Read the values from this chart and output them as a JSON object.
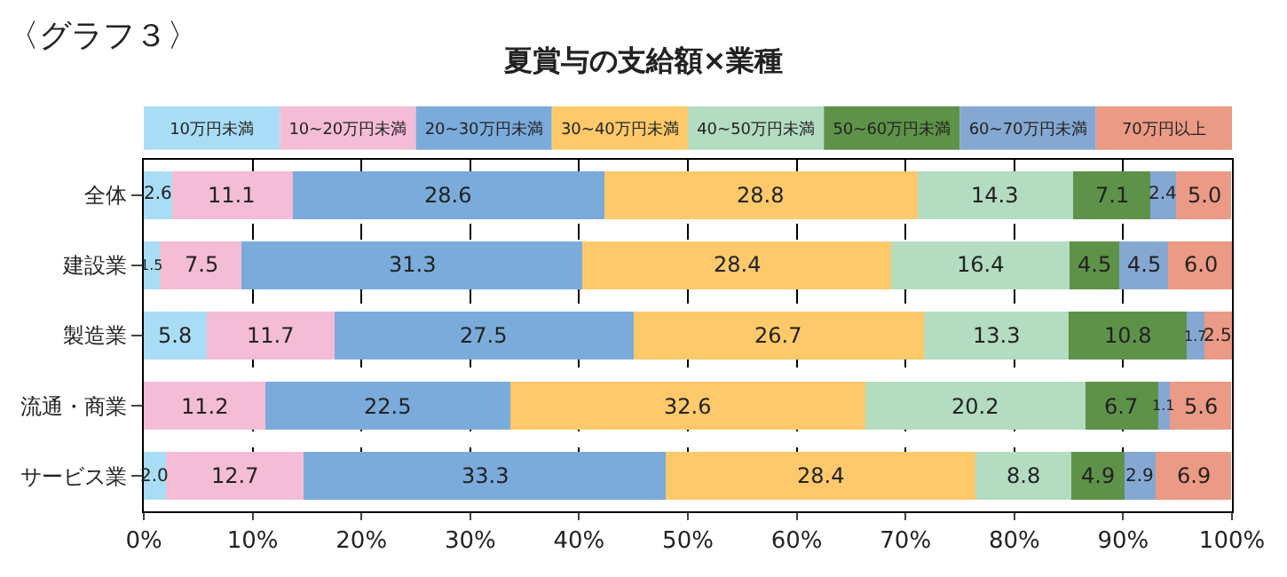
{
  "chart_data": {
    "type": "bar",
    "orientation": "horizontal",
    "stacked": true,
    "title": "夏賞与の支給額×業種",
    "annotations": [
      "〈グラフ３〉"
    ],
    "categories": [
      "全体",
      "建設業",
      "製造業",
      "流通・商業",
      "サービス業"
    ],
    "series": [
      {
        "name": "10万円未満",
        "color": "#a9ddf5",
        "values": [
          2.6,
          1.5,
          5.8,
          0,
          2.0
        ],
        "value_labels": [
          "2.6",
          "1.5",
          "5.8",
          null,
          "2.0"
        ]
      },
      {
        "name": "10~20万円未満",
        "color": "#f5bcd6",
        "values": [
          11.1,
          7.5,
          11.7,
          11.2,
          12.7
        ],
        "value_labels": [
          "11.1",
          "7.5",
          "11.7",
          "11.2",
          "12.7"
        ]
      },
      {
        "name": "20~30万円未満",
        "color": "#7aabdb",
        "values": [
          28.6,
          31.3,
          27.5,
          22.5,
          33.3
        ],
        "value_labels": [
          "28.6",
          "31.3",
          "27.5",
          "22.5",
          "33.3"
        ]
      },
      {
        "name": "30~40万円未満",
        "color": "#fdc96a",
        "values": [
          28.8,
          28.4,
          26.7,
          32.6,
          28.4
        ],
        "value_labels": [
          "28.8",
          "28.4",
          "26.7",
          "32.6",
          "28.4"
        ]
      },
      {
        "name": "40~50万円未満",
        "color": "#b3dcc0",
        "values": [
          14.3,
          16.4,
          13.3,
          20.2,
          8.8
        ],
        "value_labels": [
          "14.3",
          "16.4",
          "13.3",
          "20.2",
          "8.8"
        ]
      },
      {
        "name": "50~60万円未満",
        "color": "#5e9248",
        "values": [
          7.1,
          4.5,
          10.8,
          6.7,
          4.9
        ],
        "value_labels": [
          "7.1",
          "4.5",
          "10.8",
          "6.7",
          "4.9"
        ]
      },
      {
        "name": "60~70万円未満",
        "color": "#85a8d2",
        "values": [
          2.4,
          4.5,
          1.7,
          1.1,
          2.9
        ],
        "value_labels": [
          "2.4",
          "4.5",
          "1.7",
          "1.1",
          "2.9"
        ]
      },
      {
        "name": "70万円以上",
        "color": "#eb9a85",
        "values": [
          5.0,
          6.0,
          2.5,
          5.6,
          6.9
        ],
        "value_labels": [
          "5.0",
          "6.0",
          "2.5",
          "5.6",
          "6.9"
        ]
      }
    ],
    "xlim": [
      0,
      100
    ],
    "xticks": [
      {
        "value": 0,
        "label": "0%"
      },
      {
        "value": 10,
        "label": "10%"
      },
      {
        "value": 20,
        "label": "20%"
      },
      {
        "value": 30,
        "label": "30%"
      },
      {
        "value": 40,
        "label": "40%"
      },
      {
        "value": 50,
        "label": "50%"
      },
      {
        "value": 60,
        "label": "60%"
      },
      {
        "value": 70,
        "label": "70%"
      },
      {
        "value": 80,
        "label": "80%"
      },
      {
        "value": 90,
        "label": "90%"
      },
      {
        "value": 100,
        "label": "100%"
      }
    ],
    "grid": "x",
    "legend": "top"
  }
}
